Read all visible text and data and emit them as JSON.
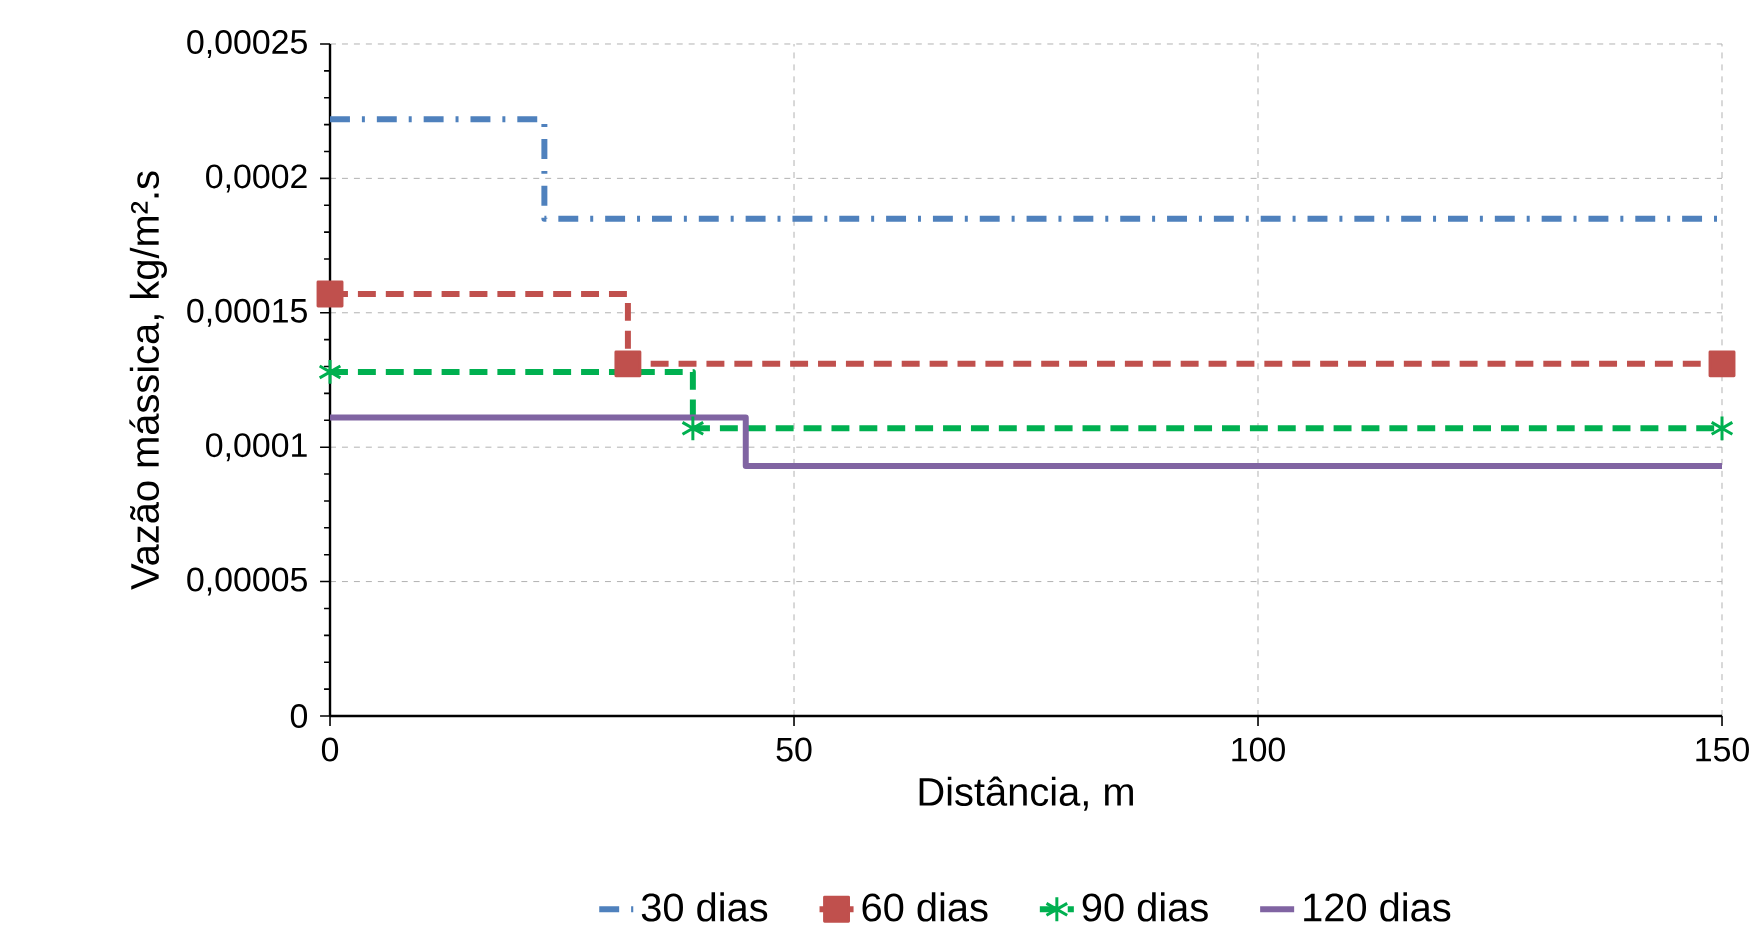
{
  "chart_data": {
    "type": "step",
    "xlabel": "Distância, m",
    "ylabel": "Vazão mássica, kg/m².s",
    "xlim": [
      0,
      150
    ],
    "xticks": [
      0,
      50,
      100,
      150
    ],
    "ylim": [
      0,
      0.00025
    ],
    "yticks": [
      0,
      {
        "value": 5e-05,
        "label": "0,00005"
      },
      {
        "value": 0.0001,
        "label": "0,0001"
      },
      {
        "value": 0.00015,
        "label": "0,00015"
      },
      {
        "value": 0.0002,
        "label": "0,0002"
      },
      {
        "value": 0.00025,
        "label": "0,00025"
      }
    ],
    "grid": true,
    "legend": "bottom",
    "series": [
      {
        "name": "30 dias",
        "color": "#4f81bd",
        "line_style": "dashdot",
        "marker": "none",
        "x": [
          0,
          23.1,
          150
        ],
        "values": [
          0.000222,
          0.000185,
          0.000185
        ]
      },
      {
        "name": "60 dias",
        "color": "#c0504d",
        "line_style": "dashed",
        "marker": "square",
        "x": [
          0,
          32.1,
          150
        ],
        "values": [
          0.000157,
          0.000131,
          0.000131
        ]
      },
      {
        "name": "90 dias",
        "color": "#00b050",
        "line_style": "dashed",
        "marker": "cross",
        "x": [
          0,
          39.1,
          150
        ],
        "values": [
          0.000128,
          0.000107,
          0.000107
        ]
      },
      {
        "name": "120 dias",
        "color": "#8064a2",
        "line_style": "solid",
        "marker": "none",
        "x": [
          0,
          44.8,
          150
        ],
        "values": [
          0.000111,
          9.3e-05,
          9.3e-05
        ]
      }
    ]
  }
}
